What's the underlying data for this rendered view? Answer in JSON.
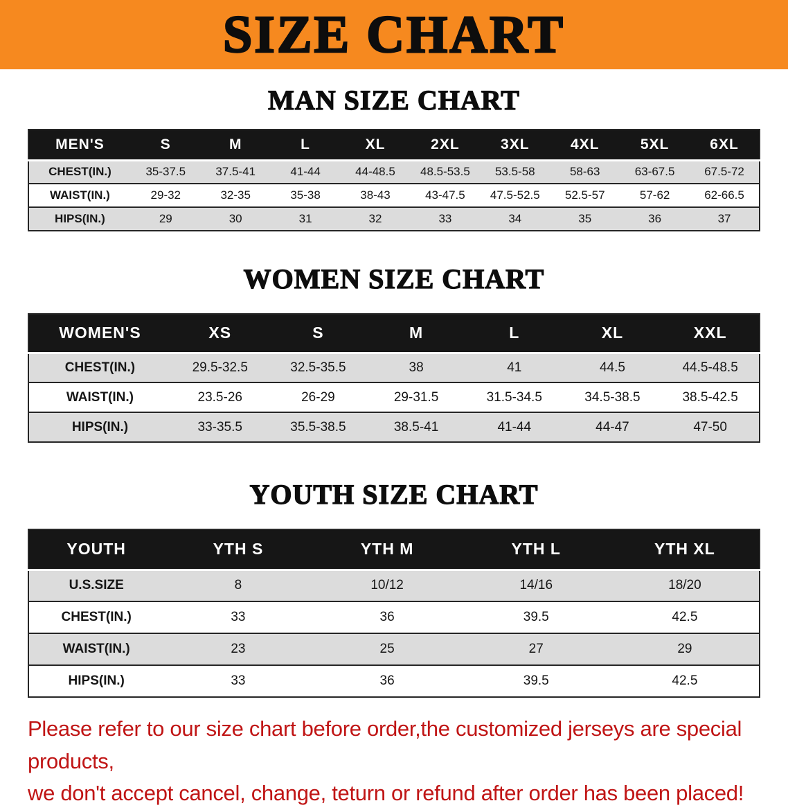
{
  "banner": {
    "title": "SIZE CHART"
  },
  "colors": {
    "banner_bg": "#F6891F",
    "header_row_bg": "#161616",
    "shade_row_bg": "#DCDCDC",
    "line_color": "#262626",
    "disclaimer_red": "#C01515"
  },
  "sections": [
    {
      "heading": "MAN SIZE CHART",
      "table": {
        "header": [
          "MEN'S",
          "S",
          "M",
          "L",
          "XL",
          "2XL",
          "3XL",
          "4XL",
          "5XL",
          "6XL"
        ],
        "rows": [
          [
            "CHEST(IN.)",
            "35-37.5",
            "37.5-41",
            "41-44",
            "44-48.5",
            "48.5-53.5",
            "53.5-58",
            "58-63",
            "63-67.5",
            "67.5-72"
          ],
          [
            "WAIST(IN.)",
            "29-32",
            "32-35",
            "35-38",
            "38-43",
            "43-47.5",
            "47.5-52.5",
            "52.5-57",
            "57-62",
            "62-66.5"
          ],
          [
            "HIPS(IN.)",
            "29",
            "30",
            "31",
            "32",
            "33",
            "34",
            "35",
            "36",
            "37"
          ]
        ]
      }
    },
    {
      "heading": "WOMEN SIZE CHART",
      "table": {
        "header": [
          "WOMEN'S",
          "XS",
          "S",
          "M",
          "L",
          "XL",
          "XXL"
        ],
        "rows": [
          [
            "CHEST(IN.)",
            "29.5-32.5",
            "32.5-35.5",
            "38",
            "41",
            "44.5",
            "44.5-48.5"
          ],
          [
            "WAIST(IN.)",
            "23.5-26",
            "26-29",
            "29-31.5",
            "31.5-34.5",
            "34.5-38.5",
            "38.5-42.5"
          ],
          [
            "HIPS(IN.)",
            "33-35.5",
            "35.5-38.5",
            "38.5-41",
            "41-44",
            "44-47",
            "47-50"
          ]
        ]
      }
    },
    {
      "heading": "YOUTH SIZE CHART",
      "table": {
        "header": [
          "YOUTH",
          "YTH S",
          "YTH M",
          "YTH L",
          "YTH XL"
        ],
        "rows": [
          [
            "U.S.SIZE",
            "8",
            "10/12",
            "14/16",
            "18/20"
          ],
          [
            "CHEST(IN.)",
            "33",
            "36",
            "39.5",
            "42.5"
          ],
          [
            "WAIST(IN.)",
            "23",
            "25",
            "27",
            "29"
          ],
          [
            "HIPS(IN.)",
            "33",
            "36",
            "39.5",
            "42.5"
          ]
        ]
      }
    }
  ],
  "disclaimer": {
    "line1": "Please refer to our size chart before order,the customized jerseys are special products,",
    "line2": "we don't accept cancel, change, teturn or refund after order has been placed!"
  }
}
